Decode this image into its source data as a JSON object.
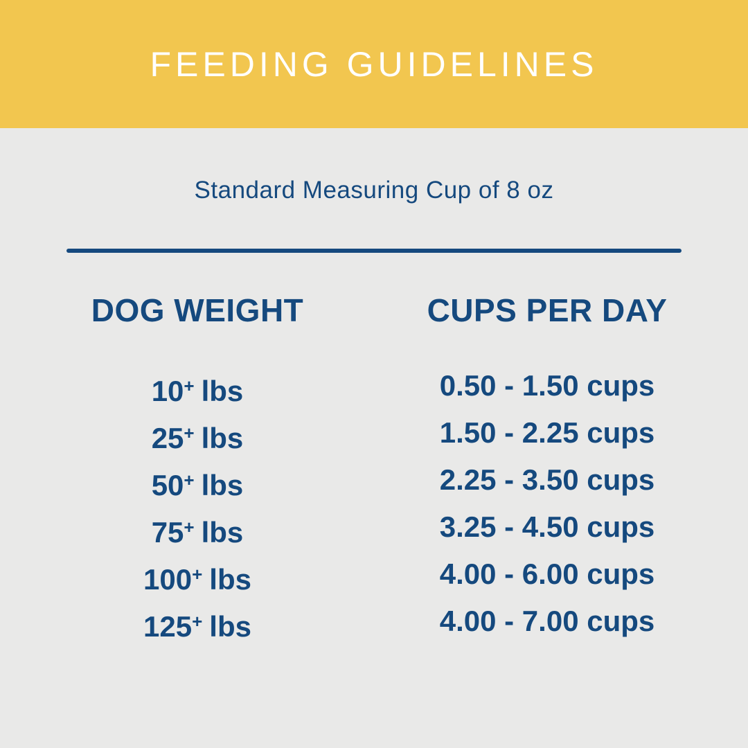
{
  "header": {
    "title": "FEEDING GUIDELINES"
  },
  "subtitle": "Standard Measuring Cup of 8 oz",
  "table": {
    "columns": {
      "weight": "DOG WEIGHT",
      "cups": "CUPS PER DAY"
    },
    "rows": [
      {
        "weight_value": "10",
        "weight_plus": "+",
        "weight_unit": "lbs",
        "cups": "0.50 - 1.50 cups"
      },
      {
        "weight_value": "25",
        "weight_plus": "+",
        "weight_unit": "lbs",
        "cups": "1.50 - 2.25 cups"
      },
      {
        "weight_value": "50",
        "weight_plus": "+",
        "weight_unit": "lbs",
        "cups": "2.25 - 3.50 cups"
      },
      {
        "weight_value": "75",
        "weight_plus": "+",
        "weight_unit": "lbs",
        "cups": "3.25 - 4.50 cups"
      },
      {
        "weight_value": "100",
        "weight_plus": "+",
        "weight_unit": "lbs",
        "cups": "4.00 - 6.00 cups"
      },
      {
        "weight_value": "125",
        "weight_plus": "+",
        "weight_unit": "lbs",
        "cups": "4.00 - 7.00 cups"
      }
    ]
  },
  "colors": {
    "banner_yellow": "#F2C64F",
    "background_gray": "#E9E9E8",
    "text_blue": "#15497E",
    "title_white": "#FFFFFF"
  },
  "chart_data": {
    "type": "table",
    "title": "FEEDING GUIDELINES",
    "subtitle": "Standard Measuring Cup of 8 oz",
    "columns": [
      "DOG WEIGHT",
      "CUPS PER DAY"
    ],
    "rows": [
      [
        "10+ lbs",
        "0.50 - 1.50 cups"
      ],
      [
        "25+ lbs",
        "1.50 - 2.25 cups"
      ],
      [
        "50+ lbs",
        "2.25 - 3.50 cups"
      ],
      [
        "75+ lbs",
        "3.25 - 4.50 cups"
      ],
      [
        "100+ lbs",
        "4.00 - 6.00 cups"
      ],
      [
        "125+ lbs",
        "4.00 - 7.00 cups"
      ]
    ],
    "cups_ranges": [
      {
        "weight_min_lbs": 10,
        "cups_min": 0.5,
        "cups_max": 1.5
      },
      {
        "weight_min_lbs": 25,
        "cups_min": 1.5,
        "cups_max": 2.25
      },
      {
        "weight_min_lbs": 50,
        "cups_min": 2.25,
        "cups_max": 3.5
      },
      {
        "weight_min_lbs": 75,
        "cups_min": 3.25,
        "cups_max": 4.5
      },
      {
        "weight_min_lbs": 100,
        "cups_min": 4.0,
        "cups_max": 6.0
      },
      {
        "weight_min_lbs": 125,
        "cups_min": 4.0,
        "cups_max": 7.0
      }
    ]
  }
}
